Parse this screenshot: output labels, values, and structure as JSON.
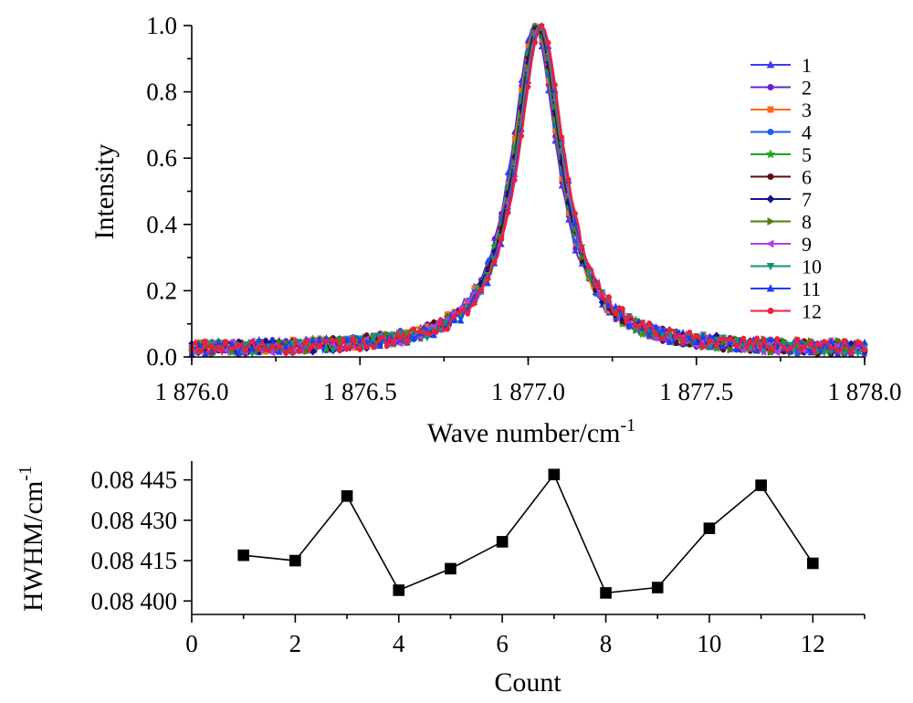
{
  "chart_data": [
    {
      "type": "line",
      "title": "",
      "xlabel": "Wave number/cm",
      "xlabel_sup": "-1",
      "ylabel": "Intensity",
      "xlim": [
        1876.0,
        1878.0
      ],
      "ylim": [
        0.0,
        1.0
      ],
      "x_ticks": [
        1876.0,
        1876.5,
        1877.0,
        1877.5,
        1878.0
      ],
      "x_tick_labels": [
        "1 876.0",
        "1 876.5",
        "1 877.0",
        "1 877.5",
        "1 878.0"
      ],
      "y_ticks": [
        0.0,
        0.2,
        0.4,
        0.6,
        0.8,
        1.0
      ],
      "y_tick_labels": [
        "0.0",
        "0.2",
        "0.4",
        "0.6",
        "0.8",
        "1.0"
      ],
      "grid": false,
      "legend_position": "top-right",
      "profile": {
        "center": 1877.03,
        "peak": 1.0,
        "baseline": 0.02,
        "hwhm_approx": 0.084
      },
      "series": [
        {
          "name": "1",
          "color": "#3b3bf0",
          "marker": "triangle-up"
        },
        {
          "name": "2",
          "color": "#6a22c8",
          "marker": "circle"
        },
        {
          "name": "3",
          "color": "#ff6a1a",
          "marker": "square"
        },
        {
          "name": "4",
          "color": "#1d5af0",
          "marker": "circle"
        },
        {
          "name": "5",
          "color": "#1aa51a",
          "marker": "star"
        },
        {
          "name": "6",
          "color": "#5a0e0e",
          "marker": "circle"
        },
        {
          "name": "7",
          "color": "#14148c",
          "marker": "diamond"
        },
        {
          "name": "8",
          "color": "#557a0a",
          "marker": "triangle-right"
        },
        {
          "name": "9",
          "color": "#b43ce6",
          "marker": "triangle-left"
        },
        {
          "name": "10",
          "color": "#0e9678",
          "marker": "triangle-down"
        },
        {
          "name": "11",
          "color": "#1e3cff",
          "marker": "triangle-up"
        },
        {
          "name": "12",
          "color": "#f01e3c",
          "marker": "circle"
        }
      ]
    },
    {
      "type": "line",
      "title": "",
      "xlabel": "Count",
      "ylabel": "HWHM/cm",
      "ylabel_sup": "-1",
      "xlim": [
        0,
        13
      ],
      "ylim": [
        0.08395,
        0.08452
      ],
      "x_ticks": [
        0,
        2,
        4,
        6,
        8,
        10,
        12
      ],
      "x_tick_labels": [
        "0",
        "2",
        "4",
        "6",
        "8",
        "10",
        "12"
      ],
      "y_ticks": [
        0.084,
        0.08415,
        0.0843,
        0.08445
      ],
      "y_tick_labels": [
        "0.08 400",
        "0.08 415",
        "0.08 430",
        "0.08 445"
      ],
      "grid": false,
      "series": [
        {
          "name": "HWHM",
          "color": "#000000",
          "marker": "square",
          "x": [
            1,
            2,
            3,
            4,
            5,
            6,
            7,
            8,
            9,
            10,
            11,
            12
          ],
          "values": [
            0.08417,
            0.08415,
            0.08439,
            0.08404,
            0.08412,
            0.08422,
            0.08447,
            0.08403,
            0.08405,
            0.08427,
            0.08443,
            0.08414
          ]
        }
      ]
    }
  ]
}
